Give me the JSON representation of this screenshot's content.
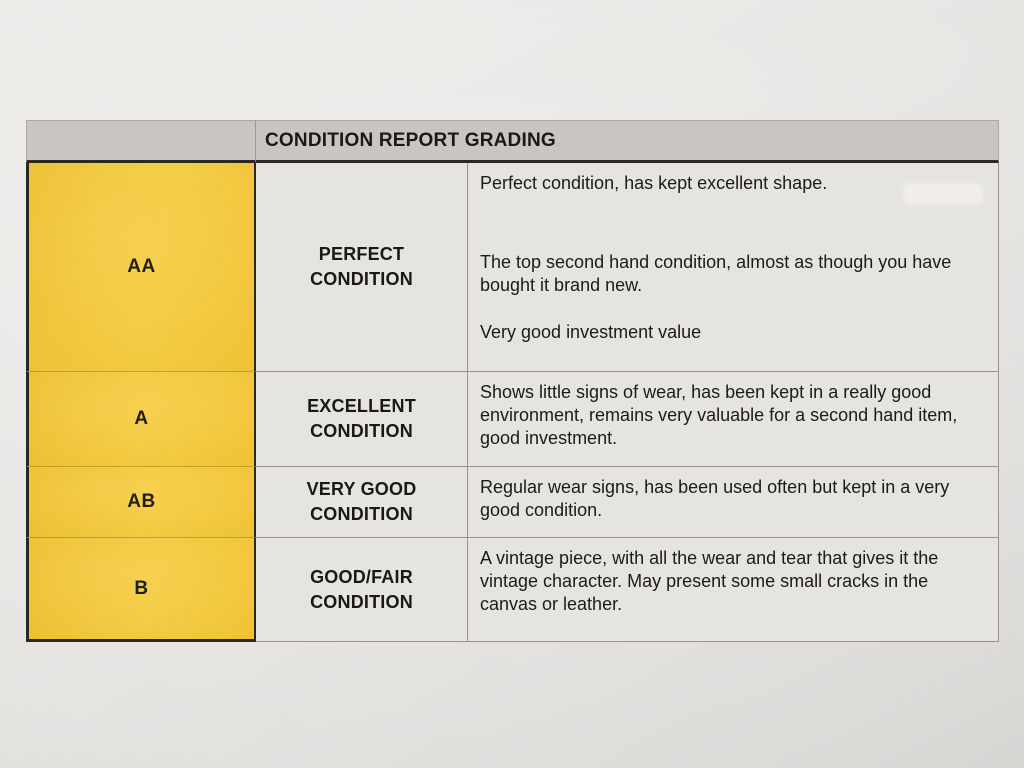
{
  "document": {
    "type": "printed-table-photo",
    "title": "CONDITION REPORT GRADING"
  },
  "table": {
    "title": "CONDITION REPORT GRADING",
    "columns": [
      "grade",
      "condition-name",
      "description"
    ],
    "rows": [
      {
        "grade": "AA",
        "condition_line1": "PERFECT",
        "condition_line2": "CONDITION",
        "desc_para1": "Perfect condition, has kept excellent shape.",
        "desc_para2": "The top second hand condition, almost as though you have bought it brand new.",
        "desc_para3": "Very good investment value"
      },
      {
        "grade": "A",
        "condition_line1": "EXCELLENT",
        "condition_line2": "CONDITION",
        "desc_para1": "Shows little signs of wear, has been kept in a really good environment, remains very valuable for a second hand item, good investment."
      },
      {
        "grade": "AB",
        "condition_line1": "VERY GOOD",
        "condition_line2": "CONDITION",
        "desc_para1": "Regular wear signs, has been used often but kept in a very good condition."
      },
      {
        "grade": "B",
        "condition_line1": "GOOD/FAIR",
        "condition_line2": "CONDITION",
        "desc_para1": "A vintage piece, with all the wear and tear that gives it the vintage character. May present some small cracks in the canvas or leather."
      }
    ]
  },
  "colors": {
    "grade_column_yellow": "#F5C93A",
    "header_gray": "#C9C6C1",
    "cell_background": "#E6E4E0",
    "paper_background": "#E8E6E3",
    "border_black": "#2B2722",
    "border_thin_gray": "#97948E",
    "text_black": "#1D1B18"
  }
}
